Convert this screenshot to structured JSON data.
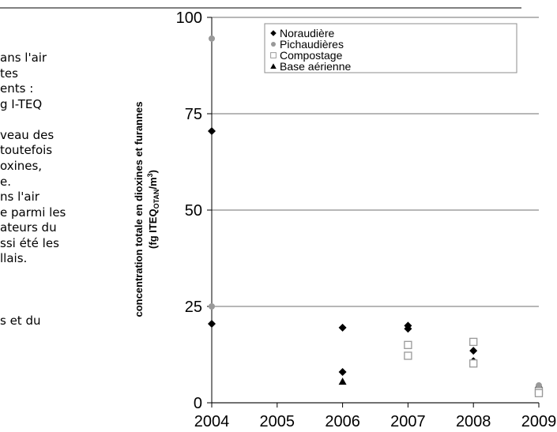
{
  "text_lines": [
    "ans l'air",
    "tes",
    "ents :",
    "g I-TEQ",
    "veau des",
    " toutefois",
    "oxines,",
    "e.",
    "ns l'air",
    "e parmi les",
    "ateurs du",
    "ssi été les",
    "llais.",
    "s et du"
  ],
  "chart_data": {
    "type": "scatter",
    "y_label": [
      "concentration totale en dioxines et furannes",
      "(fg ITEQ",
      "OTAN",
      "/m",
      "3",
      ")"
    ],
    "xlim": [
      2004,
      2009
    ],
    "xticks": [
      2004,
      2005,
      2006,
      2007,
      2008,
      2009
    ],
    "ylim": [
      0,
      100
    ],
    "yticks": [
      0,
      25,
      50,
      75,
      100
    ],
    "grid": true,
    "legend": "top-right",
    "series": [
      {
        "name": "Noraudière",
        "marker": "diamond",
        "color": "#000000",
        "x": [
          2004,
          2004,
          2006,
          2006,
          2007,
          2007,
          2008,
          2008,
          2009
        ],
        "values": [
          70.5,
          20.5,
          19.5,
          8,
          20,
          19.2,
          13.5,
          10.8,
          4
        ]
      },
      {
        "name": "Pichaudières",
        "marker": "circle",
        "color": "#999999",
        "x": [
          2004,
          2004,
          2009
        ],
        "values": [
          94.5,
          25,
          4.5
        ]
      },
      {
        "name": "Compostage",
        "marker": "square",
        "color": "#999999",
        "x": [
          2007,
          2007,
          2008,
          2008,
          2009,
          2009
        ],
        "values": [
          15,
          12.2,
          15.8,
          10.2,
          3,
          2.5
        ]
      },
      {
        "name": "Base aérienne",
        "marker": "triangle",
        "color": "#000000",
        "x": [
          2006
        ],
        "values": [
          5.5
        ]
      }
    ]
  }
}
